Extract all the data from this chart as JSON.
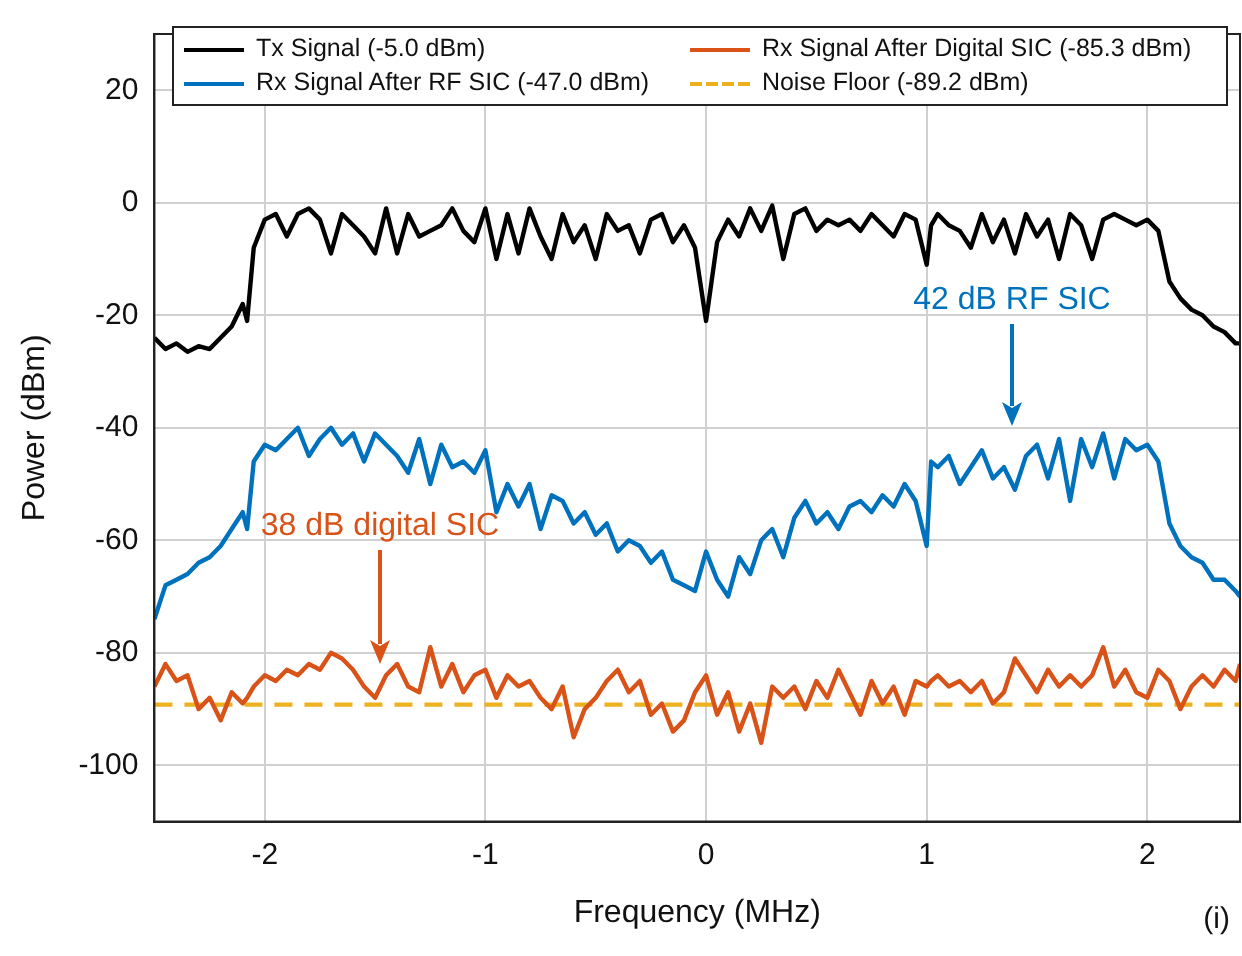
{
  "chart_data": {
    "type": "line",
    "xlabel": "Frequency (MHz)",
    "ylabel": "Power (dBm)",
    "xlim": [
      -2.5,
      2.42
    ],
    "xticks": [
      -2,
      -1,
      0,
      1,
      2
    ],
    "ylim": [
      -110,
      30
    ],
    "yticks": [
      -100,
      -80,
      -60,
      -40,
      -20,
      0,
      20
    ],
    "grid": true,
    "legend": "top",
    "line_style": "solid",
    "marker": "none",
    "x": [
      -2.5,
      -2.45,
      -2.4,
      -2.35,
      -2.3,
      -2.25,
      -2.2,
      -2.15,
      -2.1,
      -2.08,
      -2.05,
      -2.0,
      -1.95,
      -1.9,
      -1.85,
      -1.8,
      -1.75,
      -1.7,
      -1.65,
      -1.6,
      -1.55,
      -1.5,
      -1.45,
      -1.4,
      -1.35,
      -1.3,
      -1.25,
      -1.2,
      -1.15,
      -1.1,
      -1.05,
      -1.0,
      -0.95,
      -0.9,
      -0.85,
      -0.8,
      -0.75,
      -0.7,
      -0.65,
      -0.6,
      -0.55,
      -0.5,
      -0.45,
      -0.4,
      -0.35,
      -0.3,
      -0.25,
      -0.2,
      -0.15,
      -0.1,
      -0.05,
      0,
      0.05,
      0.1,
      0.15,
      0.2,
      0.25,
      0.3,
      0.35,
      0.4,
      0.45,
      0.5,
      0.55,
      0.6,
      0.65,
      0.7,
      0.75,
      0.8,
      0.85,
      0.9,
      0.95,
      1.0,
      1.02,
      1.05,
      1.1,
      1.15,
      1.2,
      1.25,
      1.3,
      1.35,
      1.4,
      1.45,
      1.5,
      1.55,
      1.6,
      1.65,
      1.7,
      1.75,
      1.8,
      1.85,
      1.9,
      1.95,
      2.0,
      2.05,
      2.1,
      2.15,
      2.2,
      2.25,
      2.3,
      2.35,
      2.4,
      2.42
    ],
    "series": [
      {
        "name": "Tx Signal (-5.0 dBm)",
        "color": "#000000",
        "values": [
          -24,
          -26,
          -25,
          -26.5,
          -25.5,
          -26,
          -24,
          -22,
          -18,
          -21,
          -8,
          -3,
          -2,
          -6,
          -2,
          -1,
          -3,
          -9,
          -2,
          -4,
          -6,
          -9,
          -1,
          -9,
          -2,
          -6,
          -5,
          -4,
          -1,
          -5,
          -7,
          -1,
          -10,
          -2,
          -9,
          -1,
          -6,
          -10,
          -2,
          -7,
          -4,
          -10,
          -2,
          -5,
          -4,
          -9,
          -3,
          -2,
          -7,
          -4,
          -8,
          -21,
          -7,
          -3,
          -6,
          -1,
          -5,
          -0.5,
          -10,
          -2,
          -1,
          -5,
          -3,
          -4,
          -3,
          -5,
          -2,
          -4,
          -6,
          -2,
          -3,
          -11,
          -4,
          -2,
          -4,
          -5,
          -8,
          -2,
          -7,
          -3,
          -9,
          -2,
          -6,
          -3,
          -10,
          -2,
          -4,
          -10,
          -3,
          -2,
          -3,
          -4,
          -3,
          -5,
          -14,
          -17,
          -19,
          -20,
          -22,
          -23,
          -25,
          -25
        ]
      },
      {
        "name": "Rx Signal After RF SIC (-47.0 dBm)",
        "color": "#0072bd",
        "values": [
          -74,
          -68,
          -67,
          -66,
          -64,
          -63,
          -61,
          -58,
          -55,
          -58,
          -46,
          -43,
          -44,
          -42,
          -40,
          -45,
          -42,
          -40,
          -43,
          -41,
          -46,
          -41,
          -43,
          -45,
          -48,
          -42,
          -50,
          -43,
          -47,
          -46,
          -48,
          -44,
          -55,
          -50,
          -54,
          -50,
          -58,
          -52,
          -53,
          -57,
          -55,
          -59,
          -57,
          -62,
          -60,
          -61,
          -64,
          -62,
          -67,
          -68,
          -69,
          -62,
          -67,
          -70,
          -63,
          -66,
          -60,
          -58,
          -63,
          -56,
          -53,
          -57,
          -55,
          -58,
          -54,
          -53,
          -55,
          -52,
          -54,
          -50,
          -53,
          -61,
          -46,
          -47,
          -45,
          -50,
          -47,
          -44,
          -49,
          -47,
          -51,
          -45,
          -43,
          -49,
          -42,
          -53,
          -42,
          -47,
          -41,
          -49,
          -42,
          -44,
          -43,
          -46,
          -57,
          -61,
          -63,
          -64,
          -67,
          -67,
          -69,
          -70
        ]
      },
      {
        "name": "Rx Signal After Digital SIC (-85.3 dBm)",
        "color": "#d95319",
        "values": [
          -86,
          -82,
          -85,
          -84,
          -90,
          -88,
          -92,
          -87,
          -89,
          -88,
          -86,
          -84,
          -85,
          -83,
          -84,
          -82,
          -83,
          -80,
          -81,
          -83,
          -86,
          -88,
          -84,
          -82,
          -86,
          -87,
          -79,
          -86,
          -82,
          -87,
          -84,
          -83,
          -88,
          -84,
          -86,
          -85,
          -88,
          -90,
          -86,
          -95,
          -90,
          -88,
          -85,
          -83,
          -87,
          -85,
          -91,
          -89,
          -94,
          -92,
          -87,
          -84,
          -91,
          -87,
          -94,
          -89,
          -96,
          -86,
          -88,
          -86,
          -90,
          -85,
          -88,
          -83,
          -87,
          -91,
          -85,
          -89,
          -86,
          -91,
          -85,
          -86,
          -85,
          -84,
          -86,
          -85,
          -87,
          -85,
          -89,
          -87,
          -81,
          -84,
          -87,
          -83,
          -86,
          -84,
          -86,
          -84,
          -79,
          -86,
          -83,
          -87,
          -88,
          -83,
          -85,
          -90,
          -86,
          -84,
          -86,
          -83,
          -85,
          -82
        ]
      },
      {
        "name": "Noise Floor (-89.2 dBm)",
        "color": "#edb120",
        "line_style": "dashed",
        "x": [
          -2.5,
          2.42
        ],
        "values": [
          -89.2,
          -89.2
        ]
      }
    ],
    "annotations": [
      "42 dB RF SIC",
      "38 dB digital SIC",
      "(i)"
    ]
  }
}
